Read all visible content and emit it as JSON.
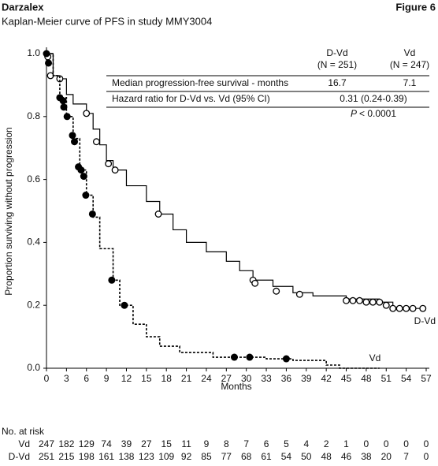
{
  "chart_data": {
    "type": "step",
    "header": "Darzalex",
    "figure_label": "Figure 6",
    "title": "Kaplan-Meier curve of PFS in study MMY3004",
    "x_label": "Months",
    "y_label": "Proportion surviving without progression",
    "xlim": [
      0,
      57
    ],
    "ylim": [
      0,
      1
    ],
    "xticks": [
      0,
      3,
      6,
      9,
      12,
      15,
      18,
      21,
      24,
      27,
      30,
      33,
      36,
      39,
      42,
      45,
      48,
      51,
      54,
      57
    ],
    "yticks": [
      {
        "value": 0,
        "label": "0.0"
      },
      {
        "value": 0.2,
        "label": "0.2"
      },
      {
        "value": 0.4,
        "label": "0.4"
      },
      {
        "value": 0.6,
        "label": "0.6"
      },
      {
        "value": 0.8,
        "label": "0.8"
      },
      {
        "value": 1,
        "label": "1.0"
      }
    ],
    "series": [
      {
        "name": "D-Vd",
        "color": "#000000",
        "dash": false,
        "censor_style": "open",
        "x": [
          0,
          1,
          2,
          3,
          4,
          6,
          7,
          8,
          9,
          10,
          12,
          15,
          17,
          19,
          21,
          24,
          27,
          29,
          31,
          34,
          37,
          40,
          45,
          50,
          52,
          57
        ],
        "values": [
          1.0,
          0.93,
          0.92,
          0.87,
          0.84,
          0.81,
          0.76,
          0.71,
          0.66,
          0.63,
          0.58,
          0.53,
          0.49,
          0.44,
          0.4,
          0.37,
          0.34,
          0.31,
          0.28,
          0.26,
          0.24,
          0.23,
          0.22,
          0.21,
          0.19,
          0.19
        ],
        "censor_x": [
          0.2,
          0.6,
          2,
          6,
          7.5,
          9.3,
          10.3,
          16.8,
          31,
          31.3,
          34.5,
          38,
          45,
          46,
          47,
          48,
          49,
          50,
          51,
          52,
          53,
          54,
          55,
          56.5
        ],
        "censor_y": [
          0.99,
          0.93,
          0.92,
          0.81,
          0.72,
          0.65,
          0.63,
          0.49,
          0.28,
          0.27,
          0.245,
          0.235,
          0.215,
          0.215,
          0.215,
          0.21,
          0.21,
          0.21,
          0.2,
          0.19,
          0.19,
          0.19,
          0.19,
          0.19
        ]
      },
      {
        "name": "Vd",
        "color": "#000000",
        "dash": true,
        "censor_style": "filled",
        "x": [
          0,
          1,
          2,
          3,
          4,
          5,
          6,
          7,
          8,
          10,
          11,
          13,
          15,
          17,
          20,
          25,
          33,
          37,
          42,
          44,
          50
        ],
        "values": [
          1.0,
          0.93,
          0.86,
          0.8,
          0.73,
          0.63,
          0.55,
          0.48,
          0.38,
          0.28,
          0.2,
          0.14,
          0.1,
          0.07,
          0.05,
          0.035,
          0.03,
          0.025,
          0.01,
          0,
          0
        ],
        "censor_x": [
          0,
          0.3,
          2,
          2.5,
          2.6,
          3.1,
          3.9,
          4.2,
          4.8,
          5.2,
          5.6,
          5.9,
          6.9,
          9.8,
          11.7,
          28.2,
          30.5,
          36
        ],
        "censor_y": [
          1.0,
          0.97,
          0.86,
          0.85,
          0.83,
          0.8,
          0.74,
          0.72,
          0.64,
          0.63,
          0.61,
          0.55,
          0.49,
          0.28,
          0.2,
          0.035,
          0.035,
          0.03
        ]
      }
    ],
    "inset_table": {
      "columns": [
        {
          "arm": "D-Vd",
          "n": "(N = 251)"
        },
        {
          "arm": "Vd",
          "n": "(N = 247)"
        }
      ],
      "rows": [
        [
          "Median progression-free survival - months",
          "16.7",
          "7.1"
        ],
        [
          "Hazard ratio for D-Vd vs. Vd (95% CI)",
          "0.31 (0.24-0.39)"
        ]
      ],
      "p_symbol": "P",
      "p_text": "< 0.0001"
    },
    "risk_table": {
      "title": "No. at risk",
      "rows": [
        {
          "name": "Vd",
          "values": [
            "247",
            "182",
            "129",
            "74",
            "39",
            "27",
            "15",
            "11",
            "9",
            "8",
            "7",
            "6",
            "5",
            "4",
            "2",
            "1",
            "0",
            "0",
            "0",
            "0"
          ]
        },
        {
          "name": "D-Vd",
          "values": [
            "251",
            "215",
            "198",
            "161",
            "138",
            "123",
            "109",
            "92",
            "85",
            "77",
            "68",
            "61",
            "54",
            "50",
            "48",
            "46",
            "38",
            "20",
            "7",
            "0"
          ]
        }
      ]
    }
  }
}
